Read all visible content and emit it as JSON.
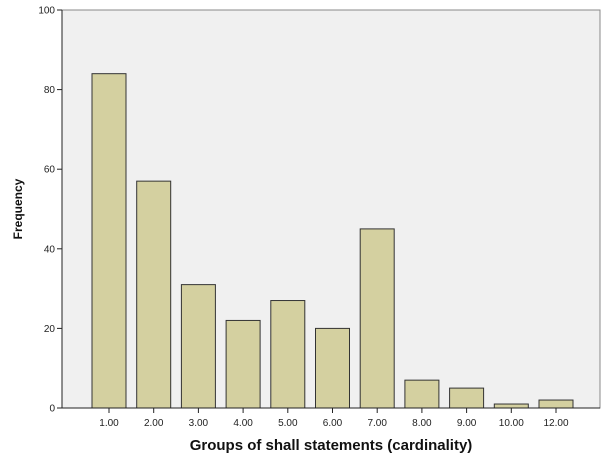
{
  "chart_data": {
    "type": "bar",
    "xlabel": "Groups of shall statements (cardinality)",
    "ylabel": "Frequency",
    "categories": [
      "1.00",
      "2.00",
      "3.00",
      "4.00",
      "5.00",
      "6.00",
      "7.00",
      "8.00",
      "9.00",
      "10.00",
      "12.00"
    ],
    "values": [
      84,
      57,
      31,
      22,
      27,
      20,
      45,
      7,
      5,
      1,
      2
    ],
    "ylim": [
      0,
      100
    ],
    "yticks": [
      "0",
      "20",
      "40",
      "60",
      "80",
      "100"
    ],
    "grid": false,
    "legend": "none",
    "colors": {
      "bar_fill": "#d4d0a0",
      "bar_stroke": "#333333",
      "plot_background": "#f0f0f0",
      "page_background": "#ffffff"
    }
  }
}
